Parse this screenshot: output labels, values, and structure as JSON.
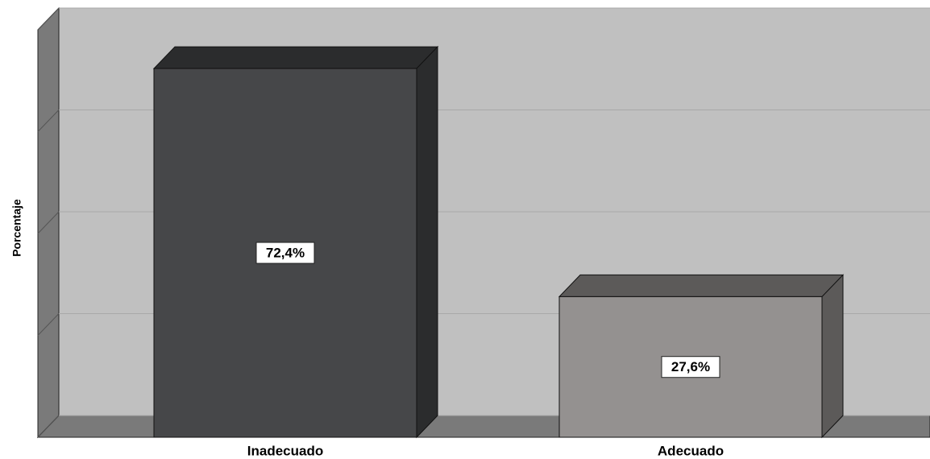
{
  "chart_data": {
    "type": "bar3d",
    "y_label": "Porcentaje",
    "categories": [
      "Inadecuado",
      "Adecuado"
    ],
    "values": [
      72.4,
      27.6
    ],
    "value_labels": [
      "72,4%",
      "27,6%"
    ],
    "colors": [
      "#464749",
      "#949190"
    ],
    "ylim": [
      0,
      80
    ],
    "yticks": [
      0,
      20,
      40,
      60,
      80
    ],
    "grid": true
  }
}
